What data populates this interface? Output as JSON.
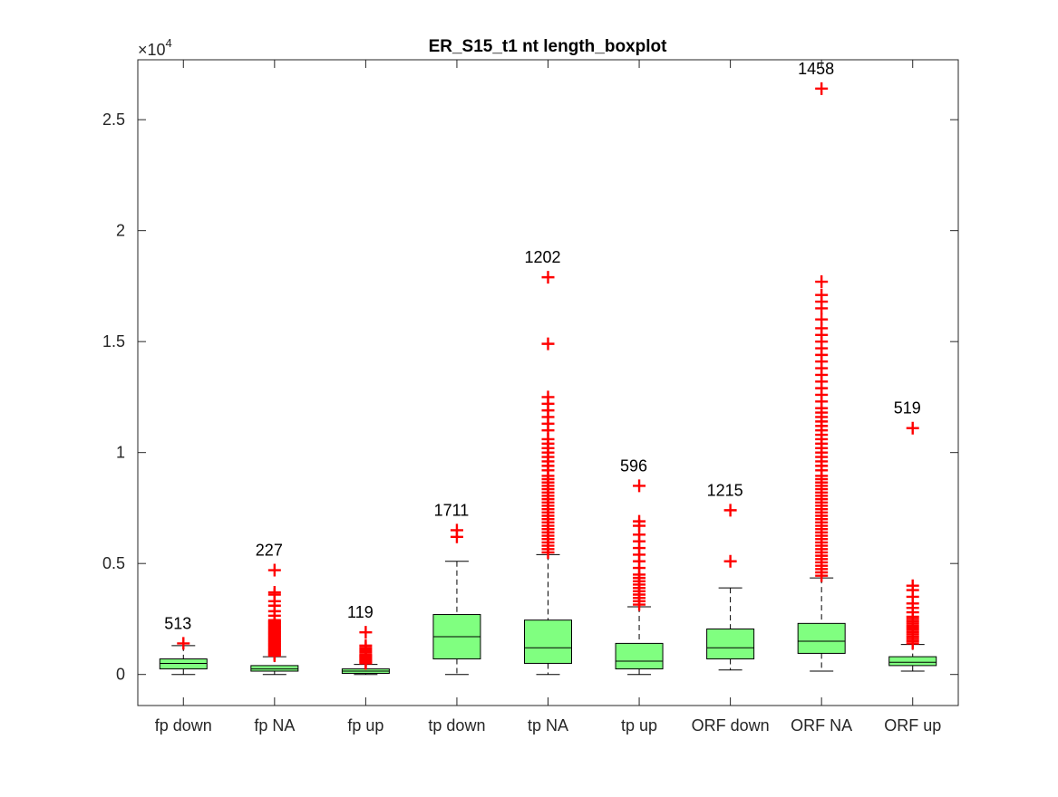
{
  "chart_data": {
    "type": "boxplot",
    "title": "ER_S15_t1 nt length_boxplot",
    "xlabel": "",
    "ylabel": "",
    "exponent_label": "×10",
    "exponent_power": "4",
    "ylim": [
      -1400,
      27700
    ],
    "yticks": [
      0,
      5000,
      10000,
      15000,
      20000,
      25000
    ],
    "ytick_labels": [
      "0",
      "0.5",
      "1",
      "1.5",
      "2",
      "2.5"
    ],
    "grid": false,
    "box_color": "#80FF80",
    "outlier_color": "#FF0000",
    "categories": [
      "fp down",
      "fp NA",
      "fp up",
      "tp down",
      "tp NA",
      "tp up",
      "ORF down",
      "ORF NA",
      "ORF up"
    ],
    "boxes": [
      {
        "label": "fp down",
        "count_label": "513",
        "whisker_low": 0,
        "q1": 250,
        "median": 500,
        "q3": 700,
        "whisker_high": 1300,
        "outliers": [
          1400
        ]
      },
      {
        "label": "fp NA",
        "count_label": "227",
        "whisker_low": 0,
        "q1": 150,
        "median": 250,
        "q3": 400,
        "whisker_high": 800,
        "outliers": [
          850,
          900,
          950,
          1000,
          1050,
          1100,
          1150,
          1200,
          1250,
          1300,
          1350,
          1400,
          1450,
          1500,
          1550,
          1600,
          1650,
          1700,
          1750,
          1800,
          1850,
          1900,
          1950,
          2000,
          2050,
          2100,
          2150,
          2200,
          2250,
          2300,
          2350,
          2400,
          2450,
          2650,
          2850,
          3100,
          3300,
          3600,
          3700,
          4700
        ]
      },
      {
        "label": "fp up",
        "count_label": "119",
        "whisker_low": 0,
        "q1": 50,
        "median": 150,
        "q3": 250,
        "whisker_high": 450,
        "outliers": [
          500,
          550,
          600,
          650,
          700,
          750,
          800,
          850,
          900,
          1000,
          1100,
          1200,
          1300,
          1900
        ]
      },
      {
        "label": "tp down",
        "count_label": "1711",
        "whisker_low": 0,
        "q1": 700,
        "median": 1700,
        "q3": 2700,
        "whisker_high": 5100,
        "outliers": [
          6200,
          6500
        ]
      },
      {
        "label": "tp NA",
        "count_label": "1202",
        "whisker_low": 0,
        "q1": 500,
        "median": 1200,
        "q3": 2450,
        "whisker_high": 5400,
        "outliers": [
          5500,
          5650,
          5800,
          5950,
          6100,
          6250,
          6400,
          6550,
          6700,
          6850,
          7000,
          7150,
          7300,
          7450,
          7600,
          7750,
          7900,
          8050,
          8200,
          8350,
          8500,
          8650,
          8800,
          8950,
          9200,
          9400,
          9600,
          9800,
          10000,
          10200,
          10400,
          10600,
          11000,
          11300,
          11600,
          11900,
          12200,
          12500,
          14900,
          17900
        ]
      },
      {
        "label": "tp up",
        "count_label": "596",
        "whisker_low": 0,
        "q1": 250,
        "median": 600,
        "q3": 1400,
        "whisker_high": 3050,
        "outliers": [
          3150,
          3300,
          3450,
          3600,
          3750,
          3900,
          4050,
          4200,
          4350,
          4500,
          4800,
          5100,
          5400,
          5700,
          6000,
          6300,
          6700,
          6900,
          8500
        ]
      },
      {
        "label": "ORF down",
        "count_label": "1215",
        "whisker_low": 200,
        "q1": 700,
        "median": 1200,
        "q3": 2050,
        "whisker_high": 3900,
        "outliers": [
          5100,
          7400
        ]
      },
      {
        "label": "ORF NA",
        "count_label": "1458",
        "whisker_low": 150,
        "q1": 950,
        "median": 1500,
        "q3": 2300,
        "whisker_high": 4350,
        "outliers": [
          4450,
          4600,
          4750,
          4900,
          5050,
          5200,
          5350,
          5500,
          5650,
          5800,
          5950,
          6100,
          6250,
          6400,
          6550,
          6700,
          6850,
          7000,
          7150,
          7300,
          7450,
          7600,
          7750,
          7900,
          8050,
          8200,
          8350,
          8500,
          8650,
          8800,
          8950,
          9200,
          9400,
          9600,
          9800,
          10000,
          10200,
          10400,
          10600,
          10800,
          11000,
          11200,
          11400,
          11600,
          11800,
          12000,
          12300,
          12600,
          12900,
          13200,
          13500,
          13800,
          14100,
          14400,
          14700,
          15000,
          15300,
          15600,
          16000,
          16500,
          16800,
          17100,
          17700,
          26400
        ]
      },
      {
        "label": "ORF up",
        "count_label": "519",
        "whisker_low": 150,
        "q1": 400,
        "median": 550,
        "q3": 800,
        "whisker_high": 1350,
        "outliers": [
          1400,
          1500,
          1600,
          1700,
          1800,
          1900,
          2000,
          2100,
          2200,
          2300,
          2400,
          2500,
          2600,
          2800,
          3000,
          3200,
          3500,
          3800,
          4000,
          11100
        ]
      }
    ]
  }
}
